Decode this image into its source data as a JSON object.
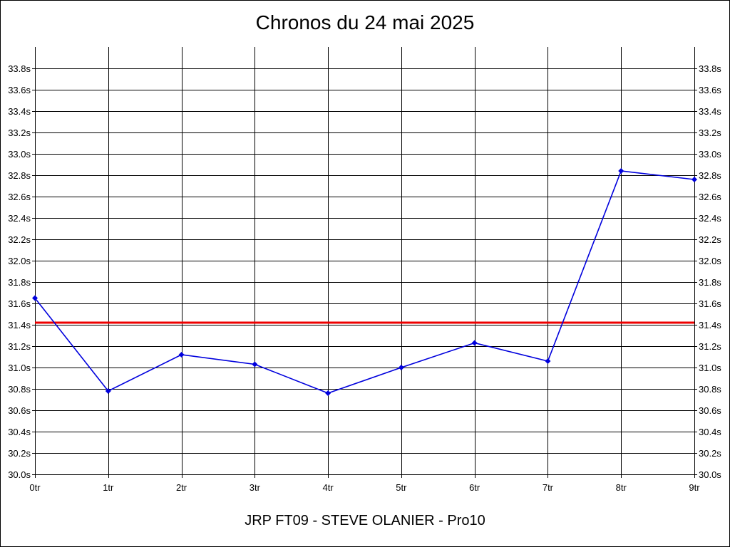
{
  "chart_data": {
    "type": "line",
    "title": "Chronos du 24 mai 2025",
    "subtitle": "JRP FT09 - STEVE OLANIER - Pro10",
    "xlabel": "",
    "ylabel": "",
    "categories": [
      "0tr",
      "1tr",
      "2tr",
      "3tr",
      "4tr",
      "5tr",
      "6tr",
      "7tr",
      "8tr",
      "9tr"
    ],
    "y_ticks": [
      "30.0s",
      "30.2s",
      "30.4s",
      "30.6s",
      "30.8s",
      "31.0s",
      "31.2s",
      "31.4s",
      "31.6s",
      "31.8s",
      "32.0s",
      "32.2s",
      "32.4s",
      "32.6s",
      "32.8s",
      "33.0s",
      "33.2s",
      "33.4s",
      "33.6s",
      "33.8s"
    ],
    "ylim": [
      30.0,
      34.0
    ],
    "grid": true,
    "series": [
      {
        "values": [
          31.65,
          30.78,
          31.12,
          31.03,
          30.76,
          31.0,
          31.23,
          31.06,
          32.84,
          32.76
        ],
        "color": "#0000dd"
      }
    ],
    "reference_line": {
      "value": 31.42,
      "color": "#ee0000"
    }
  }
}
